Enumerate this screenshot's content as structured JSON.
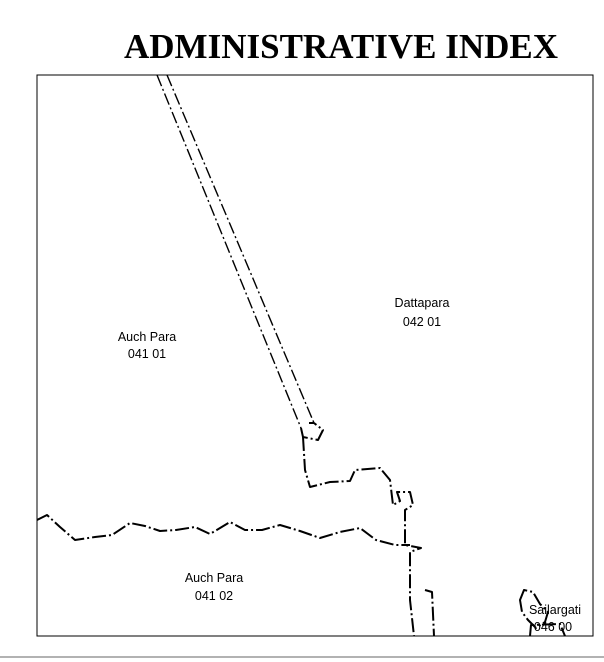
{
  "map": {
    "title": "ADMINISTRATIVE INDEX",
    "regions": [
      {
        "name": "Auch Para",
        "code": "041 01"
      },
      {
        "name": "Dattapara",
        "code": "042 01"
      },
      {
        "name": "Auch Para",
        "code": "041 02"
      },
      {
        "name": "Sailargati",
        "code": "046 00"
      }
    ]
  }
}
